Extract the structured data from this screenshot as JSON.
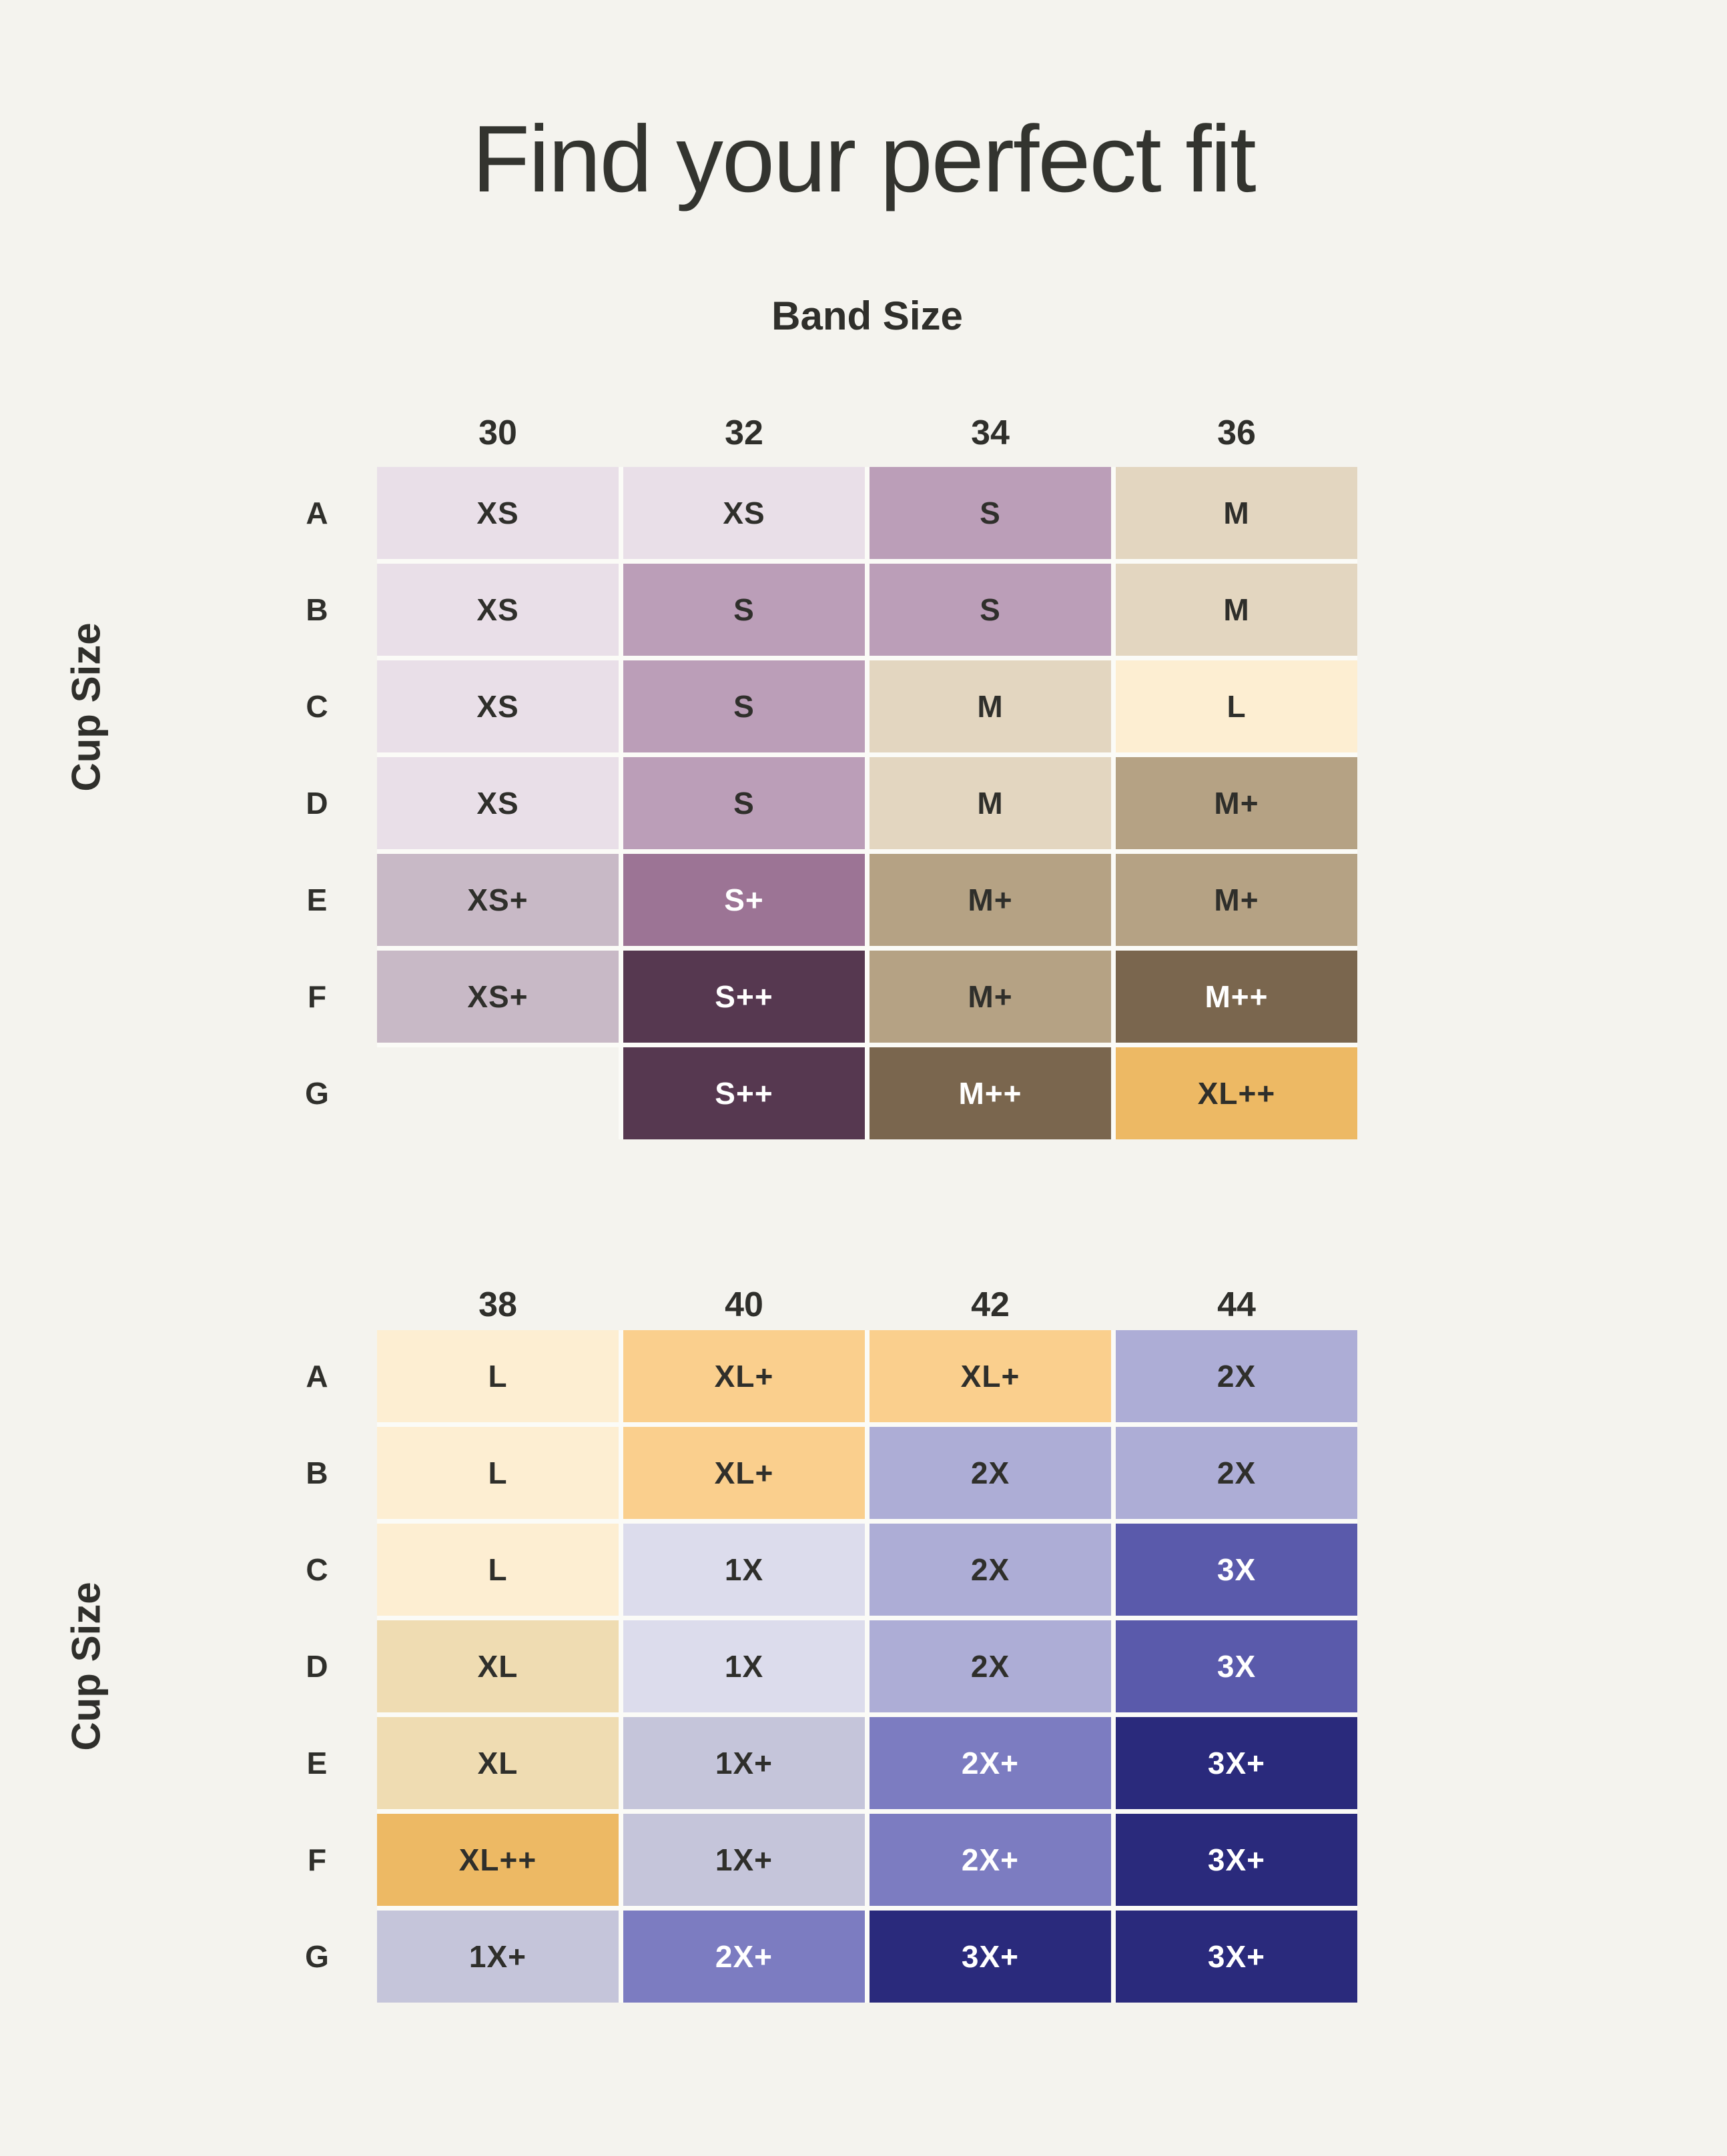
{
  "page": {
    "title": "Find your perfect fit",
    "background": "#F4F3EE"
  },
  "axis": {
    "band_label": "Band Size",
    "cup_label": "Cup Size"
  },
  "palette": {
    "xs": {
      "bg": "#E9DFE8",
      "fg": "#2F2F2B"
    },
    "s": {
      "bg": "#BB9EB8",
      "fg": "#2F2F2B"
    },
    "m": {
      "bg": "#E3D6C0",
      "fg": "#2F2F2B"
    },
    "cream": {
      "bg": "#FDEED2",
      "fg": "#2F2F2B"
    },
    "khaki": {
      "bg": "#B5A284",
      "fg": "#2F2F2B"
    },
    "xsp": {
      "bg": "#C8B9C6",
      "fg": "#2F2F2B"
    },
    "sp": {
      "bg": "#9C7495",
      "fg": "#FFFFFF"
    },
    "spp": {
      "bg": "#563850",
      "fg": "#FFFFFF"
    },
    "mpp": {
      "bg": "#7A664E",
      "fg": "#FFFFFF"
    },
    "gold": {
      "bg": "#EDB964",
      "fg": "#2F2F2B"
    },
    "orange": {
      "bg": "#FACF8D",
      "fg": "#2F2F2B"
    },
    "peri": {
      "bg": "#ADADD6",
      "fg": "#2F2F2B"
    },
    "lav": {
      "bg": "#DCDCEC",
      "fg": "#2F2F2B"
    },
    "blue": {
      "bg": "#5A5AAB",
      "fg": "#FFFFFF"
    },
    "tan": {
      "bg": "#EFDCB2",
      "fg": "#2F2F2B"
    },
    "grayl": {
      "bg": "#C5C5DA",
      "fg": "#2F2F2B"
    },
    "purple": {
      "bg": "#7C7CC1",
      "fg": "#FFFFFF"
    },
    "navy": {
      "bg": "#2A2A7C",
      "fg": "#FFFFFF"
    }
  },
  "chart_data": [
    {
      "type": "table",
      "band_sizes": [
        "30",
        "32",
        "34",
        "36"
      ],
      "cup_sizes": [
        "A",
        "B",
        "C",
        "D",
        "E",
        "F",
        "G"
      ],
      "rows": [
        [
          {
            "label": "XS",
            "color": "xs"
          },
          {
            "label": "XS",
            "color": "xs"
          },
          {
            "label": "S",
            "color": "s"
          },
          {
            "label": "M",
            "color": "m"
          }
        ],
        [
          {
            "label": "XS",
            "color": "xs"
          },
          {
            "label": "S",
            "color": "s"
          },
          {
            "label": "S",
            "color": "s"
          },
          {
            "label": "M",
            "color": "m"
          }
        ],
        [
          {
            "label": "XS",
            "color": "xs"
          },
          {
            "label": "S",
            "color": "s"
          },
          {
            "label": "M",
            "color": "m"
          },
          {
            "label": "L",
            "color": "cream"
          }
        ],
        [
          {
            "label": "XS",
            "color": "xs"
          },
          {
            "label": "S",
            "color": "s"
          },
          {
            "label": "M",
            "color": "m"
          },
          {
            "label": "M+",
            "color": "khaki"
          }
        ],
        [
          {
            "label": "XS+",
            "color": "xsp"
          },
          {
            "label": "S+",
            "color": "sp"
          },
          {
            "label": "M+",
            "color": "khaki"
          },
          {
            "label": "M+",
            "color": "khaki"
          }
        ],
        [
          {
            "label": "XS+",
            "color": "xsp"
          },
          {
            "label": "S++",
            "color": "spp"
          },
          {
            "label": "M+",
            "color": "khaki"
          },
          {
            "label": "M++",
            "color": "mpp"
          }
        ],
        [
          null,
          {
            "label": "S++",
            "color": "spp"
          },
          {
            "label": "M++",
            "color": "mpp"
          },
          {
            "label": "XL++",
            "color": "gold"
          }
        ]
      ]
    },
    {
      "type": "table",
      "band_sizes": [
        "38",
        "40",
        "42",
        "44"
      ],
      "cup_sizes": [
        "A",
        "B",
        "C",
        "D",
        "E",
        "F",
        "G"
      ],
      "rows": [
        [
          {
            "label": "L",
            "color": "cream"
          },
          {
            "label": "XL+",
            "color": "orange"
          },
          {
            "label": "XL+",
            "color": "orange"
          },
          {
            "label": "2X",
            "color": "peri"
          }
        ],
        [
          {
            "label": "L",
            "color": "cream"
          },
          {
            "label": "XL+",
            "color": "orange"
          },
          {
            "label": "2X",
            "color": "peri"
          },
          {
            "label": "2X",
            "color": "peri"
          }
        ],
        [
          {
            "label": "L",
            "color": "cream"
          },
          {
            "label": "1X",
            "color": "lav"
          },
          {
            "label": "2X",
            "color": "peri"
          },
          {
            "label": "3X",
            "color": "blue"
          }
        ],
        [
          {
            "label": "XL",
            "color": "tan"
          },
          {
            "label": "1X",
            "color": "lav"
          },
          {
            "label": "2X",
            "color": "peri"
          },
          {
            "label": "3X",
            "color": "blue"
          }
        ],
        [
          {
            "label": "XL",
            "color": "tan"
          },
          {
            "label": "1X+",
            "color": "grayl"
          },
          {
            "label": "2X+",
            "color": "purple"
          },
          {
            "label": "3X+",
            "color": "navy"
          }
        ],
        [
          {
            "label": "XL++",
            "color": "gold"
          },
          {
            "label": "1X+",
            "color": "grayl"
          },
          {
            "label": "2X+",
            "color": "purple"
          },
          {
            "label": "3X+",
            "color": "navy"
          }
        ],
        [
          {
            "label": "1X+",
            "color": "grayl"
          },
          {
            "label": "2X+",
            "color": "purple"
          },
          {
            "label": "3X+",
            "color": "navy"
          },
          {
            "label": "3X+",
            "color": "navy"
          }
        ]
      ]
    }
  ]
}
